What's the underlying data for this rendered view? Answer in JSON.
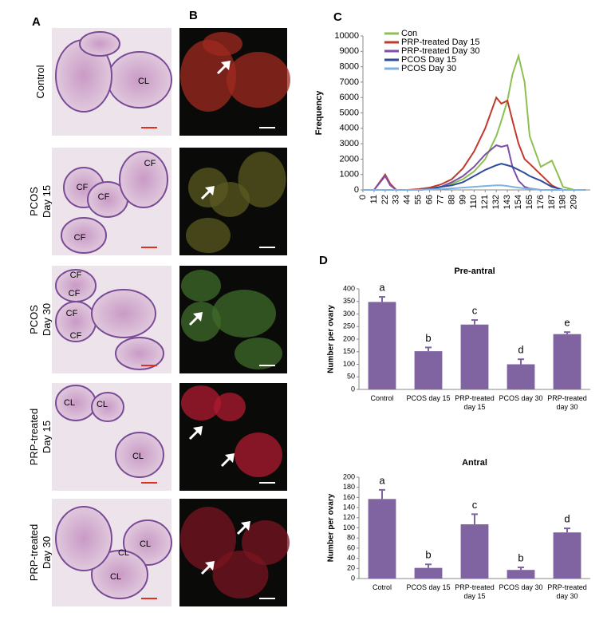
{
  "figure": {
    "panel_labels": [
      "A",
      "B",
      "C",
      "D"
    ],
    "rows": [
      {
        "label": [
          "Control"
        ],
        "he_marks": [
          "CL"
        ]
      },
      {
        "label": [
          "PCOS",
          "Day 15"
        ],
        "he_marks": [
          "CF",
          "CF",
          "CF",
          "CF"
        ]
      },
      {
        "label": [
          "PCOS",
          "Day 30"
        ],
        "he_marks": [
          "CF",
          "CF",
          "CF",
          "CF"
        ]
      },
      {
        "label": [
          "PRP-treated",
          "Day 15"
        ],
        "he_marks": [
          "CL",
          "CL",
          "CL"
        ]
      },
      {
        "label": [
          "PRP-treated",
          "Day 30"
        ],
        "he_marks": [
          "CL",
          "CL",
          "CL"
        ]
      }
    ]
  },
  "chart_data": [
    {
      "type": "line",
      "y_label": "Frequency",
      "x": [
        0,
        11,
        22,
        27,
        33,
        44,
        55,
        66,
        77,
        88,
        99,
        110,
        121,
        132,
        137,
        143,
        148,
        154,
        160,
        165,
        176,
        187,
        193,
        198,
        209,
        220
      ],
      "xlim": [
        0,
        225
      ],
      "xticks": [
        0,
        11,
        22,
        33,
        44,
        55,
        66,
        77,
        88,
        99,
        110,
        121,
        132,
        143,
        154,
        165,
        176,
        187,
        198,
        209
      ],
      "ylim": [
        0,
        10000
      ],
      "yticks": [
        0,
        1000,
        2000,
        3000,
        4000,
        5000,
        6000,
        7000,
        8000,
        9000,
        10000
      ],
      "series": [
        {
          "name": "Con",
          "color": "#8cc152",
          "values": [
            0,
            0,
            0,
            0,
            0,
            0,
            0,
            100,
            200,
            400,
            700,
            1200,
            2000,
            3500,
            4500,
            5800,
            7500,
            8700,
            7000,
            3500,
            1500,
            1900,
            1000,
            200,
            0,
            0
          ]
        },
        {
          "name": "PRP-treated Day 15",
          "color": "#c0392b",
          "values": [
            0,
            0,
            1000,
            400,
            0,
            0,
            50,
            150,
            350,
            700,
            1400,
            2500,
            4000,
            6000,
            5600,
            5800,
            4500,
            3000,
            2000,
            1700,
            1000,
            300,
            100,
            0,
            0,
            0
          ]
        },
        {
          "name": "PRP-treated Day 30",
          "color": "#7d4fa8",
          "values": [
            0,
            0,
            900,
            300,
            0,
            0,
            0,
            50,
            200,
            500,
            900,
            1500,
            2300,
            2900,
            2800,
            2900,
            1500,
            600,
            200,
            100,
            0,
            0,
            0,
            0,
            0,
            0
          ]
        },
        {
          "name": "PCOS Day 15",
          "color": "#2e4a9a",
          "values": [
            0,
            0,
            0,
            0,
            0,
            0,
            0,
            50,
            200,
            300,
            500,
            900,
            1300,
            1600,
            1700,
            1600,
            1500,
            1300,
            1100,
            900,
            600,
            200,
            100,
            0,
            0,
            0
          ]
        },
        {
          "name": "PCOS Day 30",
          "color": "#7fb2e0",
          "values": [
            0,
            0,
            0,
            0,
            0,
            0,
            0,
            30,
            60,
            100,
            150,
            200,
            250,
            300,
            300,
            250,
            200,
            150,
            100,
            80,
            0,
            0,
            0,
            0,
            0,
            0
          ]
        }
      ]
    },
    {
      "type": "bar",
      "title": "Pre-antral",
      "y_label": "Number per ovary",
      "color": "#8064a2",
      "categories": [
        [
          "Control"
        ],
        [
          "PCOS day 15"
        ],
        [
          "PRP-treated",
          "day 15"
        ],
        [
          "PCOS day 30"
        ],
        [
          "PRP-treated",
          "day 30"
        ]
      ],
      "values": [
        348,
        152,
        258,
        100,
        220
      ],
      "errors": [
        20,
        15,
        18,
        20,
        8
      ],
      "letters": [
        "a",
        "b",
        "c",
        "d",
        "e"
      ],
      "ylim": [
        0,
        400
      ],
      "yticks": [
        0,
        50,
        100,
        150,
        200,
        250,
        300,
        350,
        400
      ]
    },
    {
      "type": "bar",
      "title": "Antral",
      "y_label": "Number per ovary",
      "color": "#8064a2",
      "categories": [
        [
          "Cotrol"
        ],
        [
          "PCOS day 15"
        ],
        [
          "PRP-treated",
          "day 15"
        ],
        [
          "PCOS day 30"
        ],
        [
          "PRP-treated",
          "day 30"
        ]
      ],
      "values": [
        157,
        21,
        107,
        17,
        91
      ],
      "errors": [
        18,
        7,
        20,
        5,
        8
      ],
      "letters": [
        "a",
        "b",
        "c",
        "b",
        "d"
      ],
      "ylim": [
        0,
        200
      ],
      "yticks": [
        0,
        20,
        40,
        60,
        80,
        100,
        120,
        140,
        160,
        180,
        200
      ]
    }
  ]
}
